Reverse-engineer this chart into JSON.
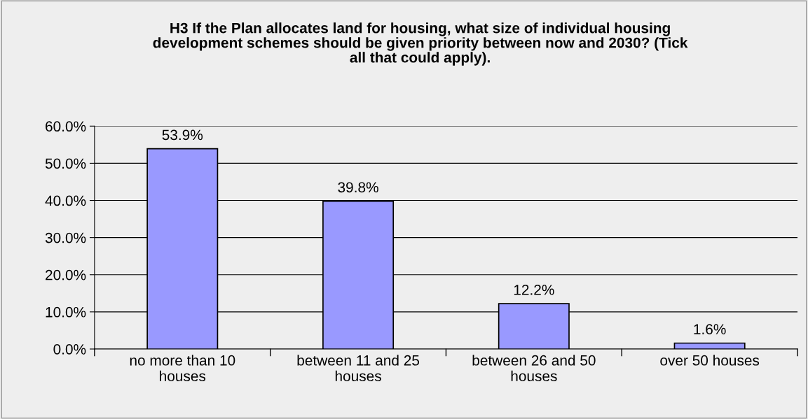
{
  "chart_data": {
    "type": "bar",
    "title": "H3 If the Plan allocates land for housing, what size of individual housing\ndevelopment schemes should be given priority between now and 2030? (Tick\nall that could apply).",
    "categories": [
      "no more than 10\nhouses",
      "between 11 and 25\nhouses",
      "between 26 and 50\nhouses",
      "over 50 houses"
    ],
    "values": [
      53.9,
      39.8,
      12.2,
      1.6
    ],
    "value_labels": [
      "53.9%",
      "39.8%",
      "12.2%",
      "1.6%"
    ],
    "color": "#9999ff",
    "ylim": [
      0,
      60
    ],
    "yticks": [
      {
        "value": 0,
        "label": "0.0%"
      },
      {
        "value": 10,
        "label": "10.0%"
      },
      {
        "value": 20,
        "label": "20.0%"
      },
      {
        "value": 30,
        "label": "30.0%"
      },
      {
        "value": 40,
        "label": "40.0%"
      },
      {
        "value": 50,
        "label": "50.0%"
      },
      {
        "value": 60,
        "label": "60.0%"
      }
    ],
    "grid": "y"
  }
}
